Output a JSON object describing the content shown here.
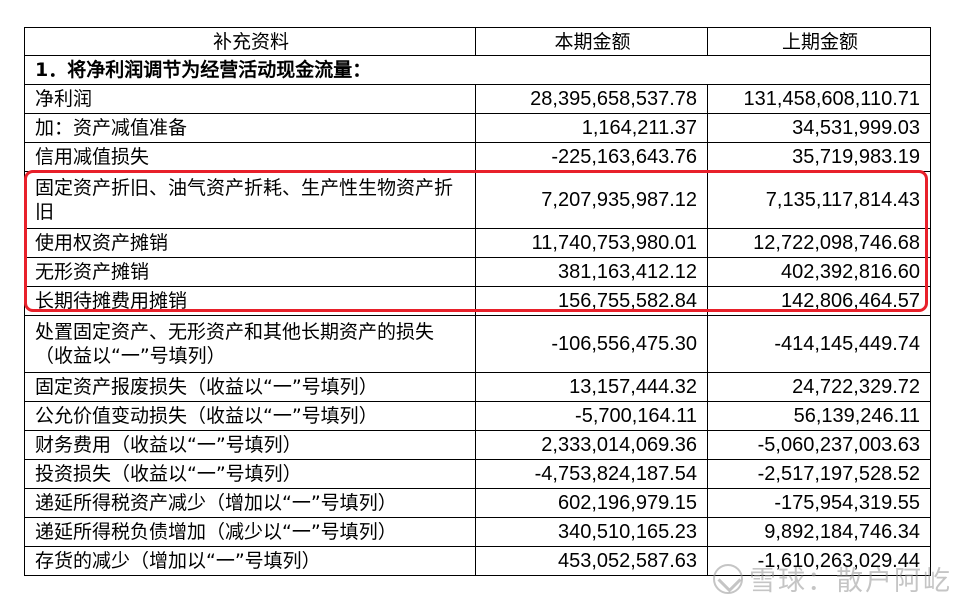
{
  "header": {
    "col1": "补充资料",
    "col2": "本期金额",
    "col3": "上期金额"
  },
  "section_title": "1．将净利润调节为经营活动现金流量：",
  "rows": [
    {
      "item": "净利润",
      "current": "28,395,658,537.78",
      "previous": "131,458,608,110.71"
    },
    {
      "item": "加：资产减值准备",
      "current": "1,164,211.37",
      "previous": "34,531,999.03"
    },
    {
      "item": "信用减值损失",
      "current": "-225,163,643.76",
      "previous": "35,719,983.19"
    },
    {
      "item": "固定资产折旧、油气资产折耗、生产性生物资产折旧",
      "current": "7,207,935,987.12",
      "previous": "7,135,117,814.43"
    },
    {
      "item": "使用权资产摊销",
      "current": "11,740,753,980.01",
      "previous": "12,722,098,746.68"
    },
    {
      "item": "无形资产摊销",
      "current": "381,163,412.12",
      "previous": "402,392,816.60"
    },
    {
      "item": "长期待摊费用摊销",
      "current": "156,755,582.84",
      "previous": "142,806,464.57"
    },
    {
      "item": "处置固定资产、无形资产和其他长期资产的损失（收益以“一”号填列）",
      "current": "-106,556,475.30",
      "previous": "-414,145,449.74"
    },
    {
      "item": "固定资产报废损失（收益以“一”号填列）",
      "current": "13,157,444.32",
      "previous": "24,722,329.72"
    },
    {
      "item": "公允价值变动损失（收益以“一”号填列）",
      "current": "-5,700,164.11",
      "previous": "56,139,246.11"
    },
    {
      "item": "财务费用（收益以“一”号填列）",
      "current": "2,333,014,069.36",
      "previous": "-5,060,237,003.63"
    },
    {
      "item": "投资损失（收益以“一”号填列）",
      "current": "-4,753,824,187.54",
      "previous": "-2,517,197,528.52"
    },
    {
      "item": "递延所得税资产减少（增加以“一”号填列）",
      "current": "602,196,979.15",
      "previous": "-175,954,319.55"
    },
    {
      "item": "递延所得税负债增加（减少以“一”号填列）",
      "current": "340,510,165.23",
      "previous": "9,892,184,746.34"
    },
    {
      "item": "存货的减少（增加以“一”号填列）",
      "current": "453,052,587.63",
      "previous": "-1,610,263,029.44"
    }
  ],
  "watermark": "雪球：散户阿屹",
  "highlight_color": "#e8202a"
}
